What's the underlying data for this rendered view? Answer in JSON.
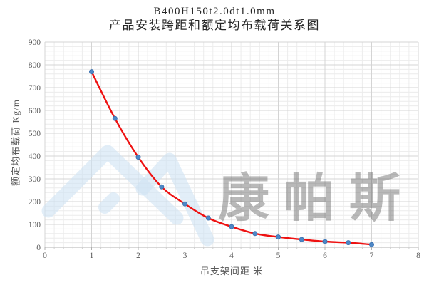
{
  "title": {
    "line1": "B400H150t2.0dt1.0mm",
    "line2": "产品安装跨距和额定均布载荷关系图"
  },
  "chart_data": {
    "type": "line",
    "title": "B400H150t2.0dt1.0mm 产品安装跨距和额定均布载荷关系图",
    "x": [
      1,
      1.5,
      2,
      2.5,
      3,
      3.5,
      4,
      4.5,
      5,
      5.5,
      6,
      6.5,
      7
    ],
    "values": [
      770,
      565,
      395,
      265,
      190,
      128,
      90,
      60,
      45,
      34,
      25,
      20,
      12
    ],
    "xlabel": "吊支架间距 米",
    "ylabel": "额定均布载荷 Kg/m",
    "xlim": [
      0,
      8
    ],
    "ylim": [
      0,
      900
    ],
    "x_ticks": [
      0,
      1,
      2,
      3,
      4,
      5,
      6,
      7,
      8
    ],
    "y_ticks": [
      0,
      100,
      200,
      300,
      400,
      500,
      600,
      700,
      800,
      900
    ],
    "x_minor_step": 0.2,
    "y_minor_step": 20,
    "grid": true,
    "legend": false,
    "smooth": true,
    "line_color": "#ee1111",
    "marker_color": "#4d87c6",
    "marker_edge_color": "#3a6fae",
    "grid_color_major": "#d4d4d4",
    "grid_color_minor": "#ececec",
    "axis_line_color": "#b0b0b0",
    "tick_label_color": "#595959"
  },
  "watermark": {
    "text": "康帕斯",
    "logo": "double-peak-logo",
    "logo_color": "#cfe2f3",
    "text_color": "#cdc5c5"
  }
}
